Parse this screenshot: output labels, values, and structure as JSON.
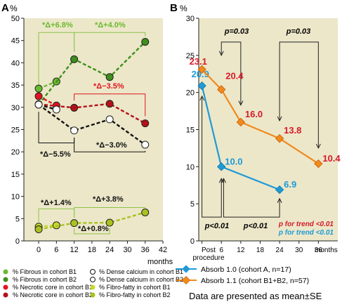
{
  "colors": {
    "plot_bg": "#ece7c9",
    "fibrous": "#6aba2e",
    "fibrous_line": "#8bc34a",
    "necrotic": "#e2141f",
    "calcium": "#111111",
    "fibrofatty": "#b9cf2a",
    "absorb10": "#1e9ad6",
    "absorb11": "#f08a1c",
    "trend_red": "#d51a2a",
    "trend_blue": "#1e9ad6"
  },
  "chart_data": [
    {
      "type": "line",
      "panel_label": "A",
      "ylabel": "%",
      "xlabel": "months",
      "xlim": [
        -5,
        42
      ],
      "ylim": [
        0,
        50
      ],
      "xticks": [
        0,
        6,
        12,
        18,
        24,
        30,
        36,
        42
      ],
      "yticks": [
        0,
        5,
        10,
        15,
        20,
        25,
        30,
        35,
        40,
        45,
        50
      ],
      "grid": false,
      "series": [
        {
          "name": "% Fibrous in cohort B1",
          "color": "#6aba2e",
          "fill": "filled",
          "dash": true,
          "x": [
            0,
            6
          ],
          "y": [
            34.2,
            35.8
          ]
        },
        {
          "name": "% Fibrous in cohort B2",
          "color": "#3e8f1c",
          "fill": "filled",
          "dash": true,
          "x": [
            0,
            12,
            24,
            36
          ],
          "y": [
            30.6,
            40.8,
            36.8,
            44.7
          ]
        },
        {
          "name": "% Necrotic core in cohort B1",
          "color": "#e2141f",
          "fill": "filled",
          "dash": true,
          "x": [
            0,
            6
          ],
          "y": [
            32.5,
            30.4
          ]
        },
        {
          "name": "% Necrotic core in cohort B2",
          "color": "#b5101a",
          "fill": "filled",
          "dash": true,
          "x": [
            0,
            12,
            24,
            36
          ],
          "y": [
            30.7,
            29.9,
            30.8,
            26.4
          ]
        },
        {
          "name": "% Dense calcium in cohort B1",
          "color": "#111111",
          "fill": "open",
          "dash": true,
          "x": [
            0,
            6
          ],
          "y": [
            30.6,
            29.5
          ]
        },
        {
          "name": "% Dense calcium in cohort B2",
          "color": "#111111",
          "fill": "open",
          "dash": true,
          "x": [
            0,
            12,
            24,
            36
          ],
          "y": [
            30.6,
            24.8,
            27.3,
            21.6
          ]
        },
        {
          "name": "% Fibro-fatty in cohort B1",
          "color": "#c7d92c",
          "fill": "filled",
          "dash": true,
          "x": [
            0,
            6
          ],
          "y": [
            3.2,
            3.5
          ]
        },
        {
          "name": "% Fibro-fatty in cohort B2",
          "color": "#a9c21f",
          "fill": "filled",
          "dash": true,
          "x": [
            0,
            12,
            24,
            36
          ],
          "y": [
            2.6,
            4.0,
            4.1,
            6.4
          ]
        }
      ],
      "annotations": [
        {
          "text": "*Δ+6.8%",
          "color": "#6aba2e"
        },
        {
          "text": "*Δ+4.0%",
          "color": "#6aba2e"
        },
        {
          "text": "*Δ−3.5%",
          "color": "#e2141f"
        },
        {
          "text": "*Δ−5.5%",
          "color": "#111111"
        },
        {
          "text": "*Δ−3.0%",
          "color": "#111111"
        },
        {
          "text": "*Δ+1.4%",
          "color": "#111111"
        },
        {
          "text": "*Δ+3.8%",
          "color": "#111111"
        },
        {
          "text": "*Δ+0.8%",
          "color": "#111111"
        }
      ],
      "legend_placement": "bottom"
    },
    {
      "type": "line",
      "panel_label": "B",
      "ylabel": "%",
      "xlabel": "months",
      "categories": [
        "Post procedure",
        "6",
        "12",
        "18",
        "24",
        "30",
        "36"
      ],
      "xlim": [
        -1,
        42
      ],
      "ylim": [
        0,
        30
      ],
      "yticks": [
        0,
        5,
        10,
        15,
        20,
        25,
        30
      ],
      "grid": false,
      "series": [
        {
          "name": "Absorb 1.0 (cohort A, n=17)",
          "color": "#1e9ad6",
          "marker": "diamond",
          "x": [
            0,
            6,
            24
          ],
          "y": [
            20.9,
            10.0,
            6.9
          ],
          "labels": [
            "20.9",
            "10.0",
            "6.9"
          ]
        },
        {
          "name": "Absorb 1.1 (cohort B1+B2, n=57)",
          "color": "#f08a1c",
          "marker": "diamond",
          "x": [
            0,
            6,
            12,
            24,
            36
          ],
          "y": [
            23.1,
            20.4,
            16.0,
            13.8,
            10.4
          ],
          "labels": [
            "23.1",
            "20.4",
            "16.0",
            "13.8",
            "10.4"
          ]
        }
      ],
      "annotations": [
        {
          "text": "p=0.03"
        },
        {
          "text": "p=0.03"
        },
        {
          "text": "p<0.01"
        },
        {
          "text": "p<0.01"
        },
        {
          "text": "p for trend <0.01",
          "color": "#d51a2a"
        },
        {
          "text": "p for trend <0.01",
          "color": "#1e9ad6"
        }
      ],
      "legend_placement": "bottom",
      "footnote": "Data are presented as mean±SE"
    }
  ],
  "panelA": {
    "label": "A",
    "ylabel": "%",
    "xlabel": "months",
    "ann": [
      "*Δ+6.8%",
      "*Δ+4.0%",
      "*Δ−3.5%",
      "*Δ−5.5%",
      "*Δ−3.0%",
      "*Δ+1.4%",
      "*Δ+3.8%",
      "*Δ+0.8%"
    ],
    "legend": [
      "% Fibrous in cohort B1",
      "% Dense calcium in cohort B1",
      "% Fibrous in cohort B2",
      "% Dense calcium in cohort B2",
      "% Necrotic core in cohort B1",
      "% Fibro-fatty in cohort B1",
      "% Necrotic core in cohort B2",
      "% Fibro-fatty in cohort B2"
    ]
  },
  "panelB": {
    "label": "B",
    "ylabel": "%",
    "xlabel": "months",
    "post1": "Post",
    "post2": "procedure",
    "p_top1": "p=0.03",
    "p_top2": "p=0.03",
    "p_bot1": "p<0.01",
    "p_bot2": "p<0.01",
    "trend_red": "p for trend <0.01",
    "trend_blue": "p for trend <0.01",
    "legend1": "Absorb 1.0 (cohort A, n=17)",
    "legend2": "Absorb 1.1 (cohort B1+B2, n=57)",
    "footnote": "Data are presented as mean±SE"
  }
}
